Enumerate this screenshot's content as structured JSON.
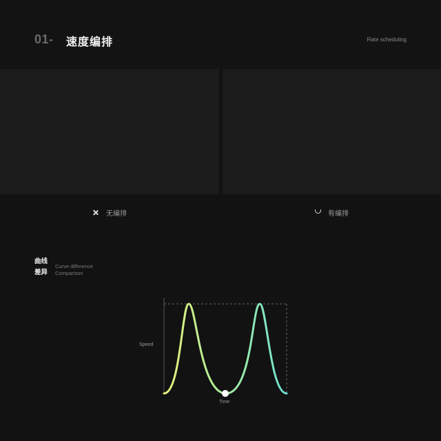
{
  "header": {
    "section_number": "01-",
    "section_title": "速度编排",
    "section_subtitle": "Rate scheduling"
  },
  "options": {
    "without": {
      "icon": "close-icon",
      "label": "无编排"
    },
    "with": {
      "icon": "smile-icon",
      "label": "有编排"
    }
  },
  "curve": {
    "title_line1": "曲线",
    "title_line2": "差异",
    "subtitle_line1": "Curve difference",
    "subtitle_line2": "Comparison"
  },
  "chart_data": {
    "type": "line",
    "xlabel": "Time",
    "ylabel": "Speed",
    "series": [
      {
        "values": [
          0,
          0.12,
          0.55,
          1.0,
          0.55,
          0.2,
          0.05,
          0,
          0.05,
          0.2,
          0.55,
          1.0,
          0.55,
          0.12,
          0
        ]
      }
    ],
    "ylim": [
      0,
      1
    ],
    "grid": false,
    "colors": {
      "start": "#e8f07a",
      "mid": "#a8f0a0",
      "end": "#6fe0d0"
    }
  }
}
